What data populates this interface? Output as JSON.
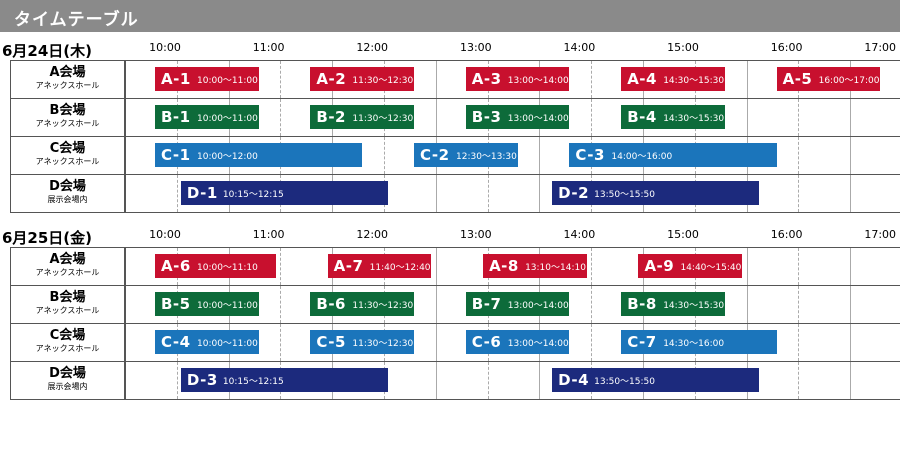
{
  "header": {
    "title": "タイムテーブル"
  },
  "hours": [
    "10:00",
    "11:00",
    "12:00",
    "13:00",
    "14:00",
    "15:00",
    "16:00",
    "17:00"
  ],
  "days": [
    {
      "date": "6月24日(木)",
      "rows": [
        {
          "name": "A会場",
          "sub": "アネックスホール",
          "color": "#c8102e",
          "sessions": [
            {
              "code": "A-1",
              "time": "10:00〜11:00"
            },
            {
              "code": "A-2",
              "time": "11:30〜12:30"
            },
            {
              "code": "A-3",
              "time": "13:00〜14:00"
            },
            {
              "code": "A-4",
              "time": "14:30〜15:30"
            },
            {
              "code": "A-5",
              "time": "16:00〜17:00"
            }
          ]
        },
        {
          "name": "B会場",
          "sub": "アネックスホール",
          "color": "#0d6b3a",
          "sessions": [
            {
              "code": "B-1",
              "time": "10:00〜11:00"
            },
            {
              "code": "B-2",
              "time": "11:30〜12:30"
            },
            {
              "code": "B-3",
              "time": "13:00〜14:00"
            },
            {
              "code": "B-4",
              "time": "14:30〜15:30"
            }
          ]
        },
        {
          "name": "C会場",
          "sub": "アネックスホール",
          "color": "#1b75bb",
          "sessions": [
            {
              "code": "C-1",
              "time": "10:00〜12:00"
            },
            {
              "code": "C-2",
              "time": "12:30〜13:30"
            },
            {
              "code": "C-3",
              "time": "14:00〜16:00"
            }
          ]
        },
        {
          "name": "D会場",
          "sub": "展示会場内",
          "color": "#1c2a7d",
          "sessions": [
            {
              "code": "D-1",
              "time": "10:15〜12:15"
            },
            {
              "code": "D-2",
              "time": "13:50〜15:50"
            }
          ]
        }
      ]
    },
    {
      "date": "6月25日(金)",
      "rows": [
        {
          "name": "A会場",
          "sub": "アネックスホール",
          "color": "#c8102e",
          "sessions": [
            {
              "code": "A-6",
              "time": "10:00〜11:10"
            },
            {
              "code": "A-7",
              "time": "11:40〜12:40"
            },
            {
              "code": "A-8",
              "time": "13:10〜14:10"
            },
            {
              "code": "A-9",
              "time": "14:40〜15:40"
            }
          ]
        },
        {
          "name": "B会場",
          "sub": "アネックスホール",
          "color": "#0d6b3a",
          "sessions": [
            {
              "code": "B-5",
              "time": "10:00〜11:00"
            },
            {
              "code": "B-6",
              "time": "11:30〜12:30"
            },
            {
              "code": "B-7",
              "time": "13:00〜14:00"
            },
            {
              "code": "B-8",
              "time": "14:30〜15:30"
            }
          ]
        },
        {
          "name": "C会場",
          "sub": "アネックスホール",
          "color": "#1b75bb",
          "sessions": [
            {
              "code": "C-4",
              "time": "10:00〜11:00"
            },
            {
              "code": "C-5",
              "time": "11:30〜12:30"
            },
            {
              "code": "C-6",
              "time": "13:00〜14:00"
            },
            {
              "code": "C-7",
              "time": "14:30〜16:00"
            }
          ]
        },
        {
          "name": "D会場",
          "sub": "展示会場内",
          "color": "#1c2a7d",
          "sessions": [
            {
              "code": "D-3",
              "time": "10:15〜12:15"
            },
            {
              "code": "D-4",
              "time": "13:50〜15:50"
            }
          ]
        }
      ]
    }
  ]
}
